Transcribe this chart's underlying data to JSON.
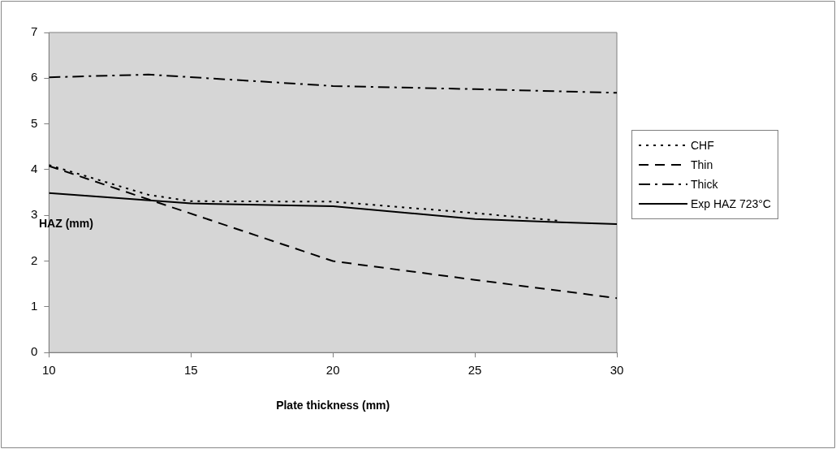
{
  "chart_data": {
    "type": "line",
    "xlabel": "Plate thickness (mm)",
    "ylabel": "HAZ (mm)",
    "xlim": [
      10,
      30
    ],
    "xticks": [
      10,
      15,
      20,
      25,
      30
    ],
    "ylim": [
      0,
      7
    ],
    "yticks": [
      0,
      1,
      2,
      3,
      4,
      5,
      6,
      7
    ],
    "grid": false,
    "legend": "right",
    "marker": "none",
    "series": [
      {
        "name": "CHF",
        "color": "#000000",
        "line_style": "dotted",
        "x": [
          10,
          13.5,
          15,
          20,
          25,
          28
        ],
        "values": [
          4.1,
          3.45,
          3.31,
          3.3,
          3.05,
          2.88
        ]
      },
      {
        "name": "Thin",
        "color": "#000000",
        "line_style": "dashed",
        "x": [
          10,
          13.5,
          20,
          25,
          30
        ],
        "values": [
          4.08,
          3.35,
          2.0,
          1.59,
          1.19
        ]
      },
      {
        "name": "Thick",
        "color": "#000000",
        "line_style": "dashdot",
        "x": [
          10,
          13.5,
          20,
          25,
          30
        ],
        "values": [
          6.02,
          6.08,
          5.83,
          5.76,
          5.68
        ]
      },
      {
        "name": "Exp HAZ 723°C",
        "color": "#000000",
        "line_style": "solid",
        "x": [
          10,
          15,
          20,
          25,
          28,
          30
        ],
        "values": [
          3.49,
          3.26,
          3.2,
          2.92,
          2.85,
          2.81
        ]
      }
    ]
  }
}
